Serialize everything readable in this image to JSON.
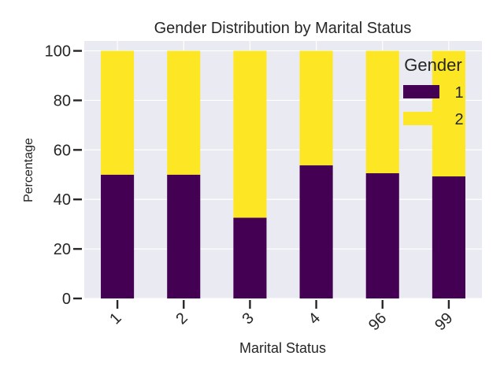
{
  "chart_data": {
    "type": "bar",
    "stacked": true,
    "title": "Gender Distribution by Marital Status",
    "xlabel": "Marital Status",
    "ylabel": "Percentage",
    "categories": [
      "1",
      "2",
      "3",
      "4",
      "96",
      "99"
    ],
    "ylim": [
      0,
      104
    ],
    "yticks": [
      0,
      20,
      40,
      60,
      80,
      100
    ],
    "grid": true,
    "legend": {
      "title": "Gender",
      "placement": "top-right"
    },
    "series": [
      {
        "name": "1",
        "color": "#440154",
        "values": [
          50.0,
          50.0,
          32.6,
          53.8,
          50.6,
          49.3
        ]
      },
      {
        "name": "2",
        "color": "#fde725",
        "values": [
          50.0,
          50.0,
          67.4,
          46.2,
          49.4,
          50.7
        ]
      }
    ],
    "background": "#eaeaf2",
    "gridColor": "#ffffff"
  }
}
